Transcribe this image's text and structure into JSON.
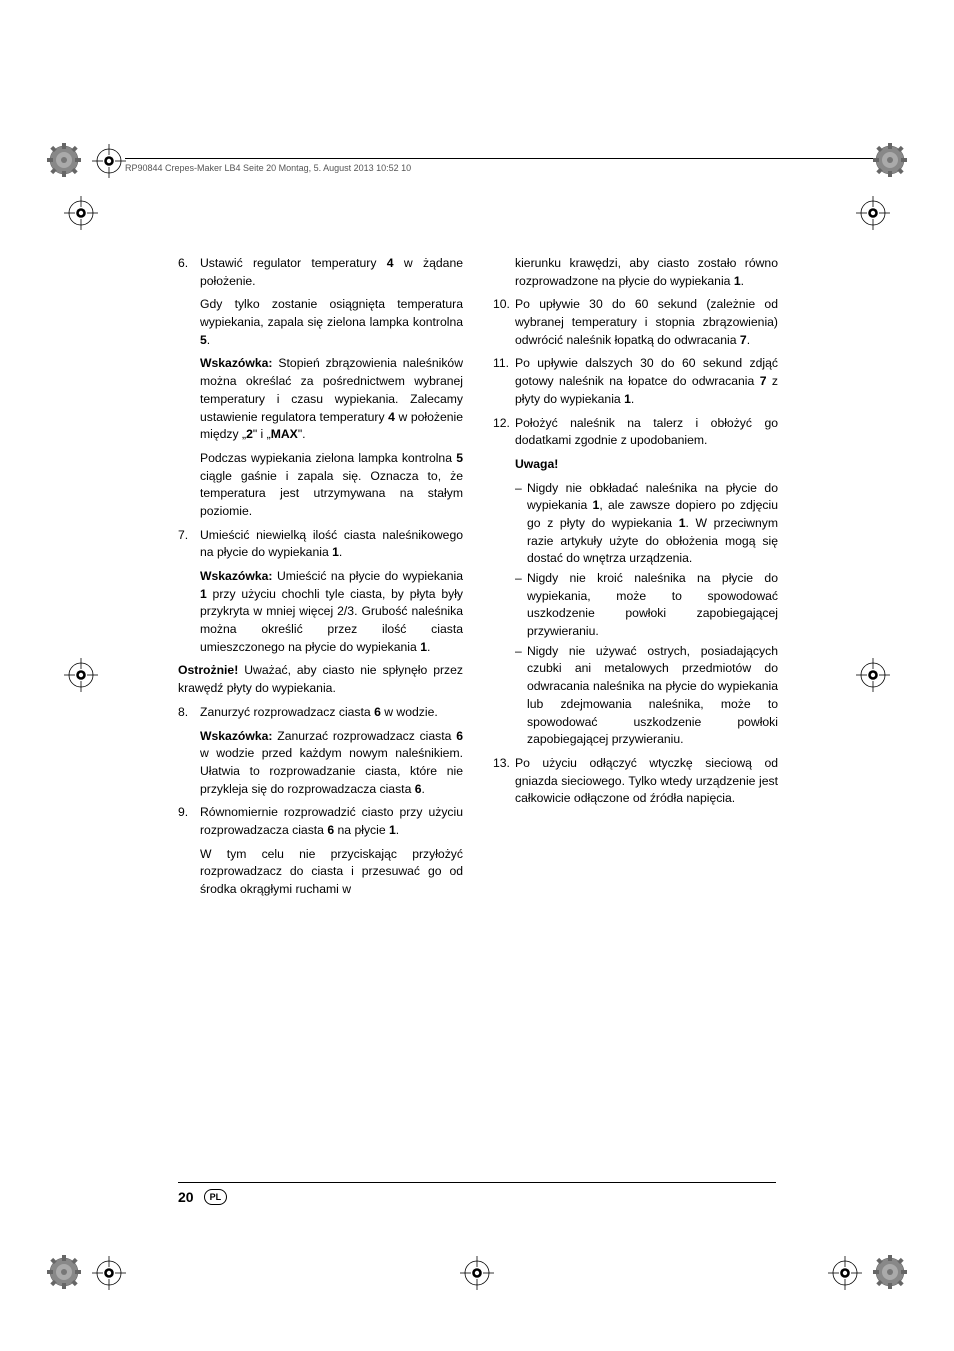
{
  "header": "RP90844 Crepes-Maker LB4  Seite 20  Montag, 5. August 2013  10:52 10",
  "footer": {
    "page": "20",
    "lang": "PL"
  },
  "col1": {
    "item6_num": "6.",
    "item6": "Ustawić regulator temperatury <b>4</b> w żądane położenie.",
    "item6b": "Gdy tylko zostanie osiągnięta temperatura wypiekania, zapala się zielona lampka kontrolna <b>5</b>.",
    "hint1": "<b>Wskazówka:</b> Stopień zbrązowienia naleśników można określać za pośrednictwem wybranej temperatury i czasu wypiekania. Zalecamy ustawienie regulatora temperatury <b>4</b> w położenie między „<b>2</b>\" i „<b>MAX</b>\".",
    "hint1b": "Podczas wypiekania zielona lampka kontrolna <b>5</b> ciągle gaśnie i zapala się. Oznacza to, że temperatura jest utrzymywana na stałym poziomie.",
    "item7_num": "7.",
    "item7": "Umieścić niewielką ilość ciasta naleśnikowego na płycie do wypiekania <b>1</b>.",
    "hint2": "<b>Wskazówka:</b> Umieścić na płycie do wypiekania <b>1</b> przy użyciu chochli tyle ciasta, by płyta były przykryta w mniej więcej 2/3. Grubość naleśnika można określić przez ilość ciasta umieszczonego na płycie do wypiekania <b>1</b>.",
    "caution": "<b>Ostrożnie!</b> Uważać, aby ciasto nie spłynęło przez krawędź płyty do wypiekania.",
    "item8_num": "8.",
    "item8": "Zanurzyć rozprowadzacz ciasta <b>6</b> w wodzie.",
    "hint3": "<b>Wskazówka:</b> Zanurzać rozprowadzacz ciasta <b>6</b> w wodzie przed każdym nowym naleśnikiem. Ułatwia to rozprowadzanie ciasta, które nie przykleja się do rozprowadzacza ciasta <b>6</b>.",
    "item9_num": "9.",
    "item9": "Równomiernie rozprowadzić ciasto przy użyciu rozprowadzacza ciasta <b>6</b> na płycie <b>1</b>.",
    "item9b": "W tym celu nie przyciskając przyłożyć rozprowadzacz do ciasta i przesuwać go od środka okrągłymi ruchami w"
  },
  "col2": {
    "item9c": "kierunku krawędzi, aby ciasto zostało równo rozprowadzone na płycie do wypiekania <b>1</b>.",
    "item10_num": "10.",
    "item10": "Po upływie 30 do 60 sekund (zależnie od wybranej temperatury i stopnia zbrązowienia) odwrócić naleśnik łopatką do odwracania <b>7</b>.",
    "item11_num": "11.",
    "item11": "Po upływie dalszych 30 do 60 sekund zdjąć gotowy naleśnik na łopatce do odwracania <b>7</b> z płyty do wypiekania <b>1</b>.",
    "item12_num": "12.",
    "item12": "Położyć naleśnik na talerz i obłożyć go dodatkami zgodnie z upodobaniem.",
    "uwaga": "Uwaga!",
    "warn1": "Nigdy nie obkładać naleśnika na płycie do wypiekania <b>1</b>, ale zawsze dopiero po zdjęciu go z płyty do wypiekania <b>1</b>. W przeciwnym razie artykuły użyte do obłożenia mogą się dostać do wnętrza urządzenia.",
    "warn2": "Nigdy nie kroić naleśnika na płycie do wypiekania, może to spowodować uszkodzenie powłoki zapobiegającej przywieraniu.",
    "warn3": "Nigdy nie używać ostrych, posiadających czubki ani metalowych przedmiotów do odwracania naleśnika na płycie do wypiekania lub zdejmowania naleśnika, może to spowodować uszkodzenie powłoki zapobiegającej przywieraniu.",
    "item13_num": "13.",
    "item13": "Po użyciu odłączyć wtyczkę sieciową od gniazda sieciowego. Tylko wtedy urządzenie jest całkowicie odłączone od źródła napięcia."
  },
  "marks": {
    "regmark_svg": "<circle cx='17' cy='17' r='12' fill='none' stroke='#000' stroke-width='0.8'/><circle cx='17' cy='17' r='4.8' fill='#000'/><circle cx='17' cy='17' r='2.2' fill='#fff'/><line x1='17' y1='0' x2='17' y2='11' stroke='#000' stroke-width='0.8'/><line x1='17' y1='23' x2='17' y2='34' stroke='#000' stroke-width='0.8'/><line x1='0' y1='17' x2='11' y2='17' stroke='#000' stroke-width='0.8'/><line x1='23' y1='17' x2='34' y2='17' stroke='#000' stroke-width='0.8'/>",
    "gear_svg": "<circle cx='20' cy='20' r='14' fill='#888' stroke='#555' stroke-width='0.5'/><g fill='#666'><rect x='18' y='3' width='4' height='6'/><rect x='18' y='31' width='4' height='6'/><rect x='3' y='18' width='6' height='4'/><rect x='31' y='18' width='6' height='4'/><rect x='7' y='7' width='5' height='4' transform='rotate(45 9.5 9)'/><rect x='28' y='7' width='5' height='4' transform='rotate(-45 30.5 9)'/><rect x='7' y='29' width='5' height='4' transform='rotate(-45 9.5 31)'/><rect x='28' y='29' width='5' height='4' transform='rotate(45 30.5 31)'/></g><circle cx='20' cy='20' r='8' fill='#aaa'/><circle cx='20' cy='20' r='3' fill='#777'/>"
  }
}
